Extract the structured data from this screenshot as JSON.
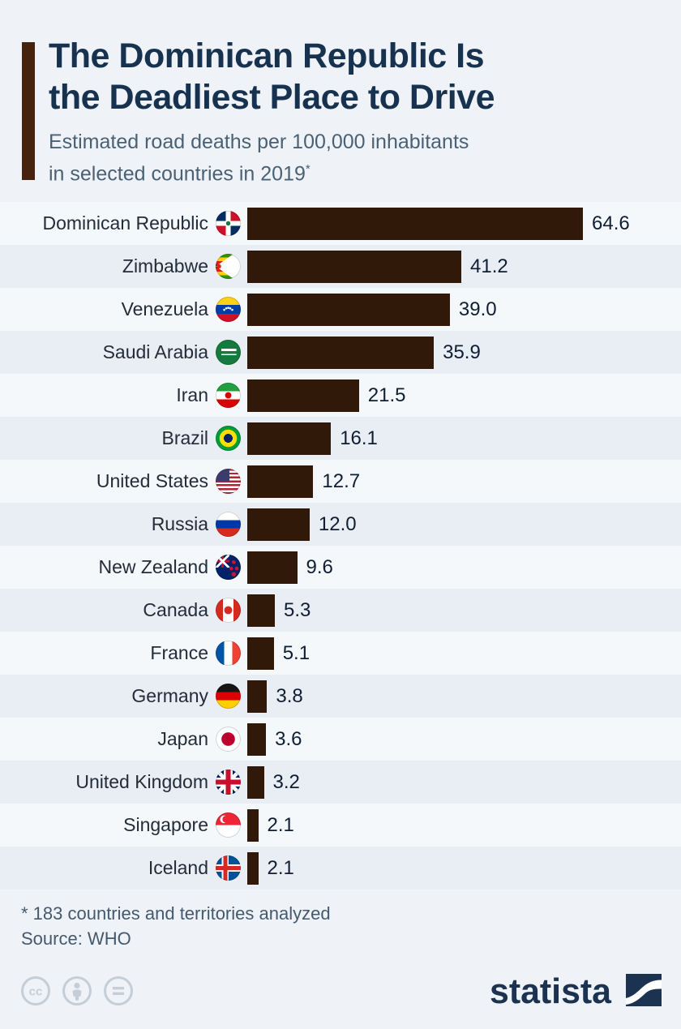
{
  "header": {
    "title_line1": "The Dominican Republic Is",
    "title_line2": "the Deadliest Place to Drive",
    "subtitle_line1": "Estimated road deaths per 100,000 inhabitants",
    "subtitle_line2": "in selected countries in 2019",
    "subtitle_marker": "*"
  },
  "chart_data": {
    "type": "bar",
    "orientation": "horizontal",
    "title": "The Dominican Republic Is the Deadliest Place to Drive",
    "subtitle": "Estimated road deaths per 100,000 inhabitants in selected countries in 2019*",
    "unit": "road deaths per 100,000 inhabitants",
    "year": "2019",
    "xmax": 64.6,
    "grid": false,
    "bar_color": "#31190a",
    "rows": [
      {
        "country": "Dominican Republic",
        "value": 64.6,
        "value_label": "64.6",
        "flag_icon": "dominican-republic-flag-icon"
      },
      {
        "country": "Zimbabwe",
        "value": 41.2,
        "value_label": "41.2",
        "flag_icon": "zimbabwe-flag-icon"
      },
      {
        "country": "Venezuela",
        "value": 39.0,
        "value_label": "39.0",
        "flag_icon": "venezuela-flag-icon"
      },
      {
        "country": "Saudi Arabia",
        "value": 35.9,
        "value_label": "35.9",
        "flag_icon": "saudi-arabia-flag-icon"
      },
      {
        "country": "Iran",
        "value": 21.5,
        "value_label": "21.5",
        "flag_icon": "iran-flag-icon"
      },
      {
        "country": "Brazil",
        "value": 16.1,
        "value_label": "16.1",
        "flag_icon": "brazil-flag-icon"
      },
      {
        "country": "United States",
        "value": 12.7,
        "value_label": "12.7",
        "flag_icon": "united-states-flag-icon"
      },
      {
        "country": "Russia",
        "value": 12.0,
        "value_label": "12.0",
        "flag_icon": "russia-flag-icon"
      },
      {
        "country": "New Zealand",
        "value": 9.6,
        "value_label": "9.6",
        "flag_icon": "new-zealand-flag-icon"
      },
      {
        "country": "Canada",
        "value": 5.3,
        "value_label": "5.3",
        "flag_icon": "canada-flag-icon"
      },
      {
        "country": "France",
        "value": 5.1,
        "value_label": "5.1",
        "flag_icon": "france-flag-icon"
      },
      {
        "country": "Germany",
        "value": 3.8,
        "value_label": "3.8",
        "flag_icon": "germany-flag-icon"
      },
      {
        "country": "Japan",
        "value": 3.6,
        "value_label": "3.6",
        "flag_icon": "japan-flag-icon"
      },
      {
        "country": "United Kingdom",
        "value": 3.2,
        "value_label": "3.2",
        "flag_icon": "united-kingdom-flag-icon"
      },
      {
        "country": "Singapore",
        "value": 2.1,
        "value_label": "2.1",
        "flag_icon": "singapore-flag-icon"
      },
      {
        "country": "Iceland",
        "value": 2.1,
        "value_label": "2.1",
        "flag_icon": "iceland-flag-icon"
      }
    ]
  },
  "footer": {
    "footnote": "* 183 countries and territories analyzed",
    "source": "Source: WHO",
    "brand": "statista",
    "license_icons": [
      "cc-icon",
      "attribution-icon",
      "equals-icon"
    ]
  },
  "colors": {
    "background": "#eff3f8",
    "row_light": "#f5f8fb",
    "row_dark": "#e9edf4",
    "bar": "#31190a",
    "accent_bar": "#46230e",
    "title": "#16324f",
    "subtitle": "#4a6175",
    "footnote": "#44596e",
    "brand_navy": "#1b3350",
    "license_gray": "#c5ced7"
  }
}
